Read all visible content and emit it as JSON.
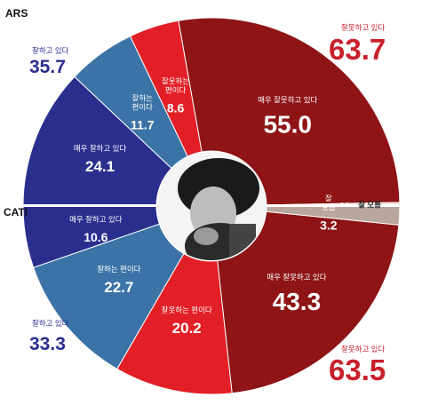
{
  "chart_data": [
    {
      "type": "pie",
      "name": "ARS",
      "half": "top",
      "slices": [
        {
          "label": "매우 잘하고 있다",
          "value": 24.1,
          "color": "#2a2f8e"
        },
        {
          "label": "잘하는 편이다",
          "value": 11.7,
          "color": "#3b73a6"
        },
        {
          "label": "잘못하는 편이다",
          "value": 8.6,
          "color": "#e21f26"
        },
        {
          "label": "매우 잘못하고 있다",
          "value": 55.0,
          "color": "#8e1416"
        },
        {
          "label": "잘 모름",
          "value": 0.6,
          "color": "#e9d9d1"
        }
      ],
      "totals": [
        {
          "label": "잘하고 있다",
          "value": "35.7",
          "color": "#2a2f8e"
        },
        {
          "label": "잘못하고 있다",
          "value": "63.7",
          "color": "#c8202b"
        }
      ]
    },
    {
      "type": "pie",
      "name": "CATI",
      "half": "bottom",
      "slices": [
        {
          "label": "매우 잘하고 있다",
          "value": 10.6,
          "color": "#2a2f8e"
        },
        {
          "label": "잘하는 편이다",
          "value": 22.7,
          "color": "#3b73a6"
        },
        {
          "label": "잘못하는 편이다",
          "value": 20.2,
          "color": "#e21f26"
        },
        {
          "label": "매우 잘못하고 있다",
          "value": 43.3,
          "color": "#8e1416"
        },
        {
          "label": "잘 모름",
          "value": 3.2,
          "color": "#b9a79d"
        }
      ],
      "totals": [
        {
          "label": "잘하고 있다",
          "value": "33.3",
          "color": "#2a2f8e"
        },
        {
          "label": "잘못하고 있다",
          "value": "63.5",
          "color": "#c8202b"
        }
      ]
    }
  ],
  "ui": {
    "ars_label": "ARS",
    "cati_label": "CATI",
    "photo_icon": "president-photo"
  }
}
